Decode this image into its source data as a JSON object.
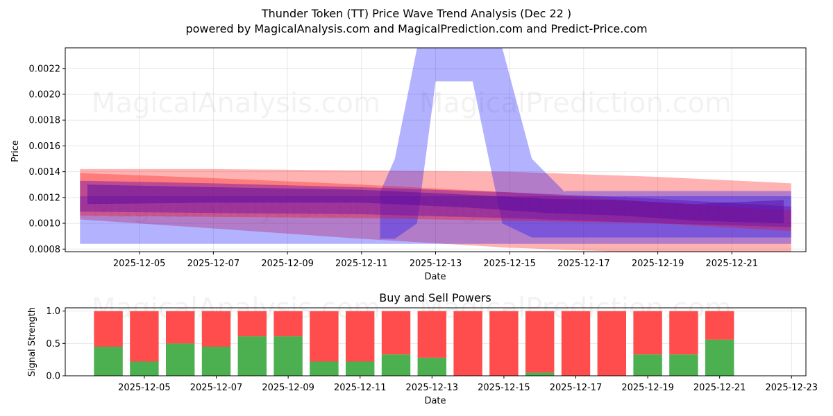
{
  "header": {
    "title": "Thunder Token (TT) Price Wave Trend Analysis (Dec 22 )",
    "subtitle": "powered by MagicalAnalysis.com and MagicalPrediction.com and Predict-Price.com"
  },
  "watermarks": {
    "left": "MagicalAnalysis.com",
    "right": "MagicalPrediction.com"
  },
  "chart_data": [
    {
      "type": "area",
      "title": "",
      "xlabel": "Date",
      "ylabel": "Price",
      "ylim": [
        0.00078,
        0.00236
      ],
      "xlim": [
        "2025-12-03",
        "2025-12-23"
      ],
      "grid": true,
      "y_ticks": [
        "0.0008",
        "0.0010",
        "0.0012",
        "0.0014",
        "0.0016",
        "0.0018",
        "0.0020",
        "0.0022"
      ],
      "x_ticks": [
        "2025-12-05",
        "2025-12-07",
        "2025-12-09",
        "2025-12-11",
        "2025-12-13",
        "2025-12-15",
        "2025-12-17",
        "2025-12-19",
        "2025-12-21"
      ],
      "series": [
        {
          "name": "red-wave-outer",
          "color": "#ff0000",
          "opacity": 0.3,
          "x": [
            3.4,
            7,
            11,
            15,
            19,
            22.6
          ],
          "upper": [
            0.00142,
            0.00142,
            0.00141,
            0.0014,
            0.00136,
            0.00131
          ],
          "lower": [
            0.00103,
            0.00096,
            0.00088,
            0.00081,
            0.00077,
            0.00077
          ]
        },
        {
          "name": "blue-wave-bar",
          "color": "#0000ff",
          "opacity": 0.3,
          "x": [
            3.4,
            22.6
          ],
          "upper": [
            0.00121,
            0.00121
          ],
          "lower": [
            0.00084,
            0.00084
          ]
        },
        {
          "name": "blue-wave-spike",
          "color": "#0000ff",
          "opacity": 0.3,
          "x": [
            11.5,
            11.9,
            12.5,
            13.0,
            14.0,
            14.8,
            15.6,
            16.5
          ],
          "upper": [
            0.00124,
            0.0015,
            0.00236,
            0.00236,
            0.00236,
            0.00236,
            0.0015,
            0.00124
          ],
          "lower": [
            0.00088,
            0.00088,
            0.001,
            0.0021,
            0.0021,
            0.001,
            0.00089,
            0.00089
          ]
        },
        {
          "name": "blue-wave-right",
          "color": "#0000ff",
          "opacity": 0.3,
          "x": [
            16.5,
            22.6
          ],
          "upper": [
            0.00125,
            0.00125
          ],
          "lower": [
            0.00089,
            0.00089
          ]
        },
        {
          "name": "red-wave-inner",
          "color": "#ff0000",
          "opacity": 0.3,
          "x": [
            3.4,
            7,
            11,
            15,
            19,
            22.6
          ],
          "upper": [
            0.00139,
            0.00135,
            0.0013,
            0.00124,
            0.00116,
            0.0011
          ],
          "lower": [
            0.00106,
            0.00105,
            0.00104,
            0.00102,
            0.001,
            0.00094
          ]
        },
        {
          "name": "purple-wave-inner",
          "color": "#6a0dad",
          "opacity": 0.45,
          "x": [
            3.4,
            7,
            11,
            15,
            19,
            22.6
          ],
          "upper": [
            0.00133,
            0.00131,
            0.00128,
            0.00124,
            0.00119,
            0.00113
          ],
          "lower": [
            0.00109,
            0.00108,
            0.00107,
            0.00104,
            0.001,
            0.00097
          ]
        },
        {
          "name": "purple-wave-core",
          "color": "#5a0aa0",
          "opacity": 0.5,
          "x": [
            3.6,
            7,
            11,
            14,
            16,
            18,
            20,
            22.4
          ],
          "upper": [
            0.0013,
            0.00128,
            0.00126,
            0.00122,
            0.00119,
            0.00118,
            0.00115,
            0.00118
          ],
          "lower": [
            0.00115,
            0.00116,
            0.00116,
            0.00112,
            0.00108,
            0.00106,
            0.00102,
            0.001
          ]
        }
      ]
    },
    {
      "type": "bar",
      "title": "Buy and Sell Powers",
      "xlabel": "Date",
      "ylabel": "Signal Strength",
      "ylim": [
        0,
        1.05
      ],
      "grid": true,
      "y_ticks": [
        "0.0",
        "0.5",
        "1.0"
      ],
      "x_ticks": [
        "2025-12-05",
        "2025-12-07",
        "2025-12-09",
        "2025-12-11",
        "2025-12-13",
        "2025-12-15",
        "2025-12-17",
        "2025-12-19",
        "2025-12-21",
        "2025-12-23"
      ],
      "categories": [
        "2025-12-04",
        "2025-12-05",
        "2025-12-06",
        "2025-12-07",
        "2025-12-08",
        "2025-12-09",
        "2025-12-10",
        "2025-12-11",
        "2025-12-12",
        "2025-12-13",
        "2025-12-14",
        "2025-12-15",
        "2025-12-16",
        "2025-12-17",
        "2025-12-18",
        "2025-12-19",
        "2025-12-20",
        "2025-12-21"
      ],
      "series": [
        {
          "name": "Buy",
          "color": "#4caf50",
          "values": [
            0.45,
            0.22,
            0.5,
            0.45,
            0.61,
            0.61,
            0.22,
            0.22,
            0.33,
            0.28,
            0.0,
            0.0,
            0.05,
            0.0,
            0.0,
            0.33,
            0.33,
            0.56
          ]
        },
        {
          "name": "Sell",
          "color": "#ff4c4c",
          "values": [
            0.55,
            0.78,
            0.5,
            0.55,
            0.39,
            0.39,
            0.78,
            0.78,
            0.67,
            0.72,
            1.0,
            1.0,
            0.95,
            1.0,
            1.0,
            0.67,
            0.67,
            0.44
          ]
        }
      ]
    }
  ]
}
